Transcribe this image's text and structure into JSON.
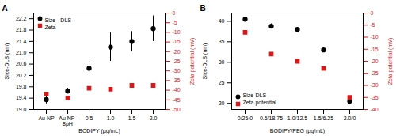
{
  "chart_data": [
    {
      "type": "scatter",
      "title": "A",
      "x_label": "BODIPY (µg/mL)",
      "y_label": "Size-DLS (nm)",
      "y2_label": "Zeta potential (mV)",
      "categories": [
        "Au NP",
        "Au NP-8pH",
        "0.5",
        "1.0",
        "1.5",
        "2.0"
      ],
      "series": [
        {
          "name": "Size - DLS",
          "color": "#000000",
          "marker": "circle",
          "values": [
            19.35,
            19.65,
            20.45,
            21.2,
            21.4,
            21.85
          ],
          "errors": [
            0.15,
            0.1,
            0.25,
            0.5,
            0.35,
            0.45
          ]
        },
        {
          "name": "Zeta",
          "color": "#d7191c",
          "marker": "square",
          "axis": "y2",
          "values": [
            -42,
            -44,
            -39,
            -39.5,
            -37.5,
            -37.5
          ]
        }
      ],
      "ylim": [
        19.0,
        22.4
      ],
      "yticks": [
        {
          "value": 19,
          "label": "19.0"
        },
        19.4,
        19.8,
        20.2,
        20.6,
        {
          "value": 21,
          "label": "21.0"
        },
        21.4,
        21.8,
        22.2
      ],
      "y2lim": [
        -50,
        0
      ],
      "y2ticks": [
        -50,
        -45,
        -40,
        -35,
        -30,
        -25,
        -20,
        -15,
        -10,
        -5,
        0
      ],
      "grid": false,
      "legend": "upper left"
    },
    {
      "type": "scatter",
      "title": "B",
      "x_label": "BODIPY/PEG (µg/mL)",
      "y_label": "Size-DLS (nm)",
      "y2_label": "Zeta potential (mV)",
      "categories": [
        "0/25.0",
        "0.5/18.75",
        "1.0/12.5",
        "1.5/6.25",
        "2.0/0"
      ],
      "series": [
        {
          "name": "Size-DLS",
          "color": "#000000",
          "marker": "circle",
          "values": [
            40.5,
            38.8,
            38.0,
            33.0,
            20.5
          ],
          "errors": [
            0.4,
            0.6,
            0.3,
            0.2,
            0.4
          ]
        },
        {
          "name": "Zeta potential",
          "color": "#d7191c",
          "marker": "square",
          "axis": "y2",
          "values": [
            -8,
            -17,
            -20,
            -23,
            -35
          ]
        }
      ],
      "ylim": [
        18.5,
        42
      ],
      "yticks": [
        20,
        25,
        30,
        35,
        40
      ],
      "y2lim": [
        -40,
        0
      ],
      "y2ticks": [
        -40,
        -35,
        -30,
        -25,
        -20,
        -15,
        -10,
        -5,
        0
      ],
      "grid": false,
      "legend": "lower left"
    }
  ]
}
